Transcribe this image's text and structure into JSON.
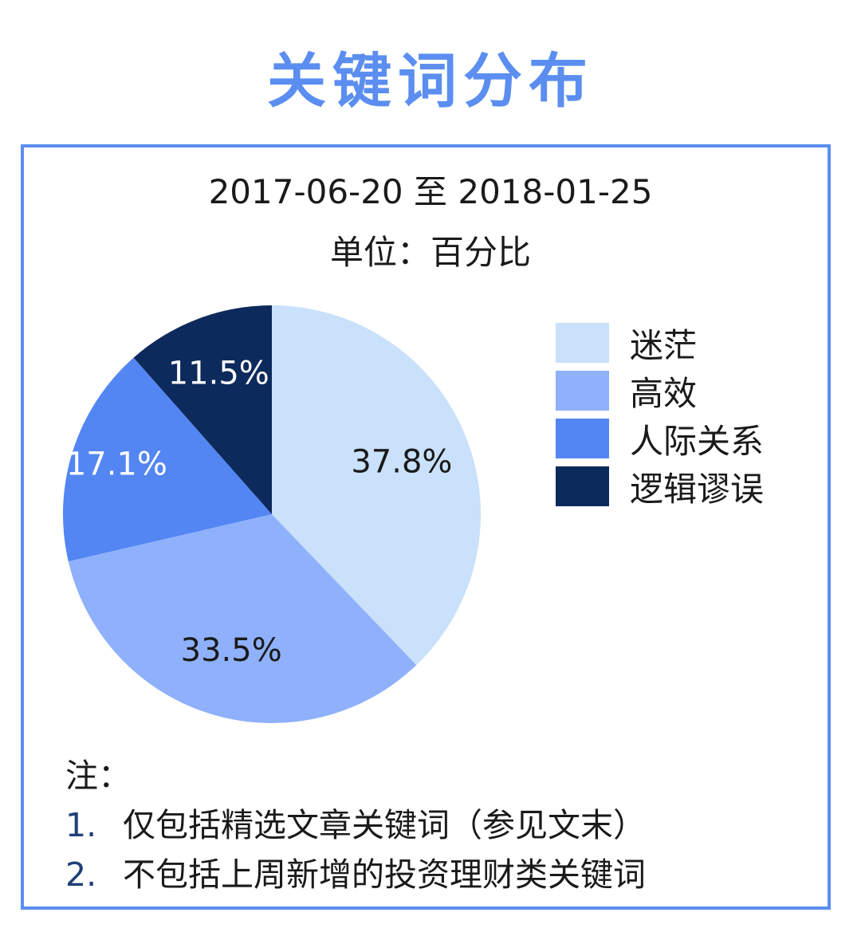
{
  "header": {
    "title": "关键词分布"
  },
  "chart_data": {
    "type": "pie",
    "title": "2017-06-20 至 2018-01-25",
    "subtitle": "单位：百分比",
    "slices": [
      {
        "label": "迷茫",
        "value": 37.8,
        "display": "37.8%",
        "color": "#c9e1fa",
        "text_color": "#1a1a1a"
      },
      {
        "label": "高效",
        "value": 33.5,
        "display": "33.5%",
        "color": "#8fb1fb",
        "text_color": "#1a1a1a"
      },
      {
        "label": "人际关系",
        "value": 17.1,
        "display": "17.1%",
        "color": "#5386f3",
        "text_color": "#ffffff"
      },
      {
        "label": "逻辑谬误",
        "value": 11.5,
        "display": "11.5%",
        "color": "#0d2a5c",
        "text_color": "#ffffff"
      }
    ],
    "legend_position": "right"
  },
  "notes": {
    "heading": "注：",
    "items": [
      {
        "num": "1.",
        "text": "仅包括精选文章关键词（参见文末）"
      },
      {
        "num": "2.",
        "text": "不包括上周新增的投资理财类关键词"
      }
    ]
  },
  "colors": {
    "accent": "#5b8ef0"
  }
}
